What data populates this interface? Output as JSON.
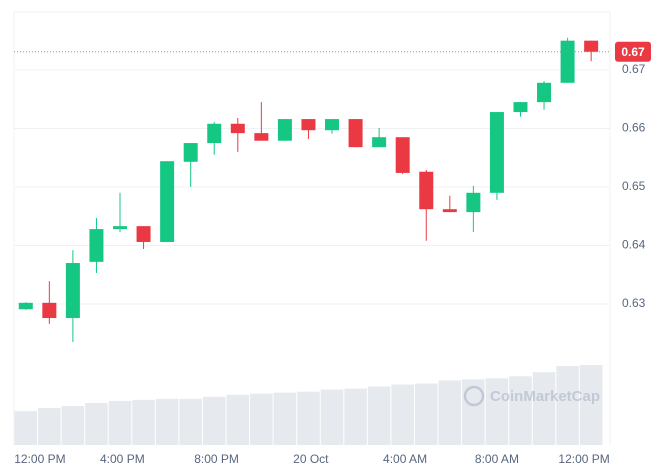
{
  "chart_data": {
    "type": "candlestick",
    "x": [
      0,
      1,
      2,
      3,
      4,
      5,
      6,
      7,
      8,
      9,
      10,
      11,
      12,
      13,
      14,
      15,
      16,
      17,
      18,
      19,
      20,
      21,
      22,
      23,
      24
    ],
    "open": [
      0.6291,
      0.6302,
      0.6276,
      0.6372,
      0.6428,
      0.6433,
      0.6406,
      0.6543,
      0.6575,
      0.6608,
      0.6592,
      0.6579,
      0.6616,
      0.6597,
      0.6616,
      0.6568,
      0.6585,
      0.6526,
      0.6462,
      0.6457,
      0.649,
      0.6628,
      0.6645,
      0.6678,
      0.675
    ],
    "high": [
      0.6303,
      0.6339,
      0.6392,
      0.6447,
      0.649,
      0.6433,
      0.6544,
      0.6575,
      0.6611,
      0.6618,
      0.6645,
      0.6616,
      0.6616,
      0.6616,
      0.6616,
      0.6601,
      0.6585,
      0.6529,
      0.6485,
      0.6502,
      0.6628,
      0.6645,
      0.6681,
      0.6755,
      0.675
    ],
    "low": [
      0.629,
      0.6266,
      0.6235,
      0.6353,
      0.6423,
      0.6394,
      0.6406,
      0.65,
      0.6555,
      0.656,
      0.6579,
      0.6579,
      0.6582,
      0.6591,
      0.6568,
      0.6568,
      0.6522,
      0.6408,
      0.6457,
      0.6423,
      0.6478,
      0.662,
      0.6632,
      0.6678,
      0.6715
    ],
    "close": [
      0.6302,
      0.6276,
      0.637,
      0.6428,
      0.6433,
      0.6406,
      0.6544,
      0.6575,
      0.6608,
      0.6592,
      0.6579,
      0.6616,
      0.6597,
      0.6616,
      0.6568,
      0.6585,
      0.6524,
      0.6462,
      0.6457,
      0.649,
      0.6628,
      0.6645,
      0.6678,
      0.675,
      0.6731
    ],
    "volume": [
      33,
      36,
      38,
      41,
      43,
      44,
      45,
      45,
      47,
      49,
      50,
      51,
      52,
      54,
      55,
      57,
      59,
      60,
      63,
      64,
      65,
      67,
      71,
      77,
      78
    ],
    "up_color": "#16c784",
    "down_color": "#ea3943",
    "volume_color": "#e6e9ee",
    "xlim": [
      -0.5,
      24.8
    ],
    "xticks": [
      {
        "value": 0.6,
        "label": "12:00 PM"
      },
      {
        "value": 4.1,
        "label": "4:00 PM"
      },
      {
        "value": 8.1,
        "label": "8:00 PM"
      },
      {
        "value": 12.1,
        "label": "20 Oct"
      },
      {
        "value": 16.1,
        "label": "4:00 AM"
      },
      {
        "value": 20.0,
        "label": "8:00 AM"
      },
      {
        "value": 23.7,
        "label": "12:00 PM"
      }
    ],
    "ylim": [
      0.6059,
      0.6799
    ],
    "yticks": [
      0.63,
      0.64,
      0.65,
      0.66,
      0.67
    ],
    "grid": true,
    "last_price": {
      "value": 0.6731,
      "label": "0.67"
    },
    "watermark": "CoinMarketCap"
  }
}
